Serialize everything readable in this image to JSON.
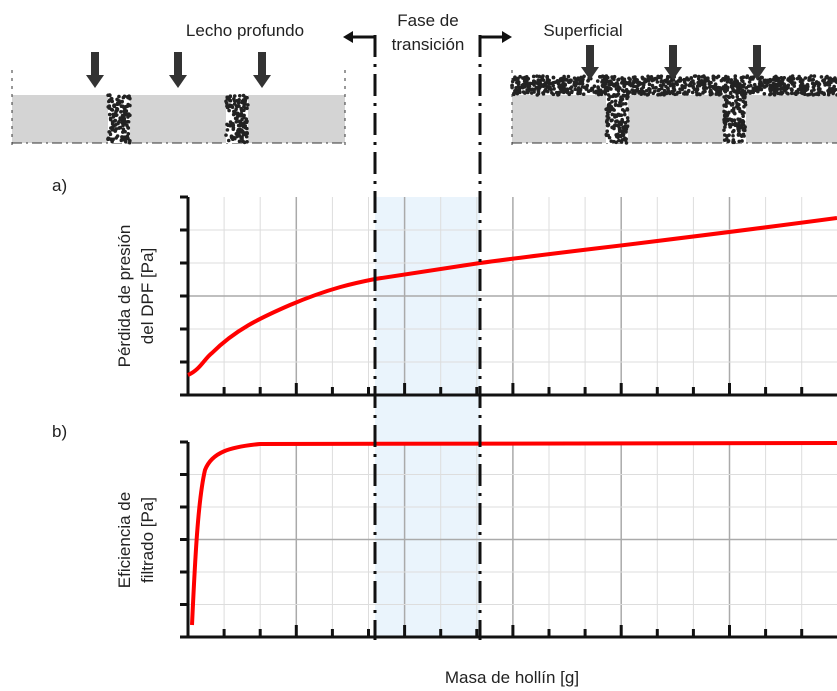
{
  "header": {
    "left": "Lecho profundo",
    "middle": [
      "Fase de",
      "transición"
    ],
    "right": "Superficial"
  },
  "panels": [
    {
      "label": "a)",
      "y_title": [
        "Pérdida de presión",
        "del DPF [Pa]"
      ]
    },
    {
      "label": "b)",
      "y_title": [
        "Eficiencia de",
        "filtrado [Pa]"
      ]
    }
  ],
  "x_title": "Masa de hollín [g]"
}
